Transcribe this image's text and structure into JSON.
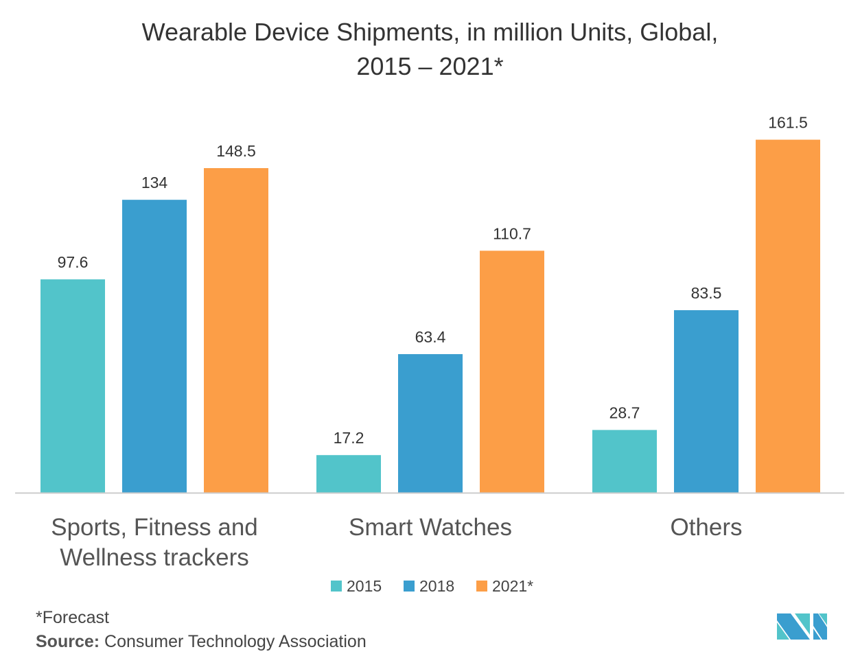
{
  "chart_data": {
    "type": "bar",
    "title_line1": "Wearable Device Shipments, in million Units, Global,",
    "title_line2": "2015 – 2021*",
    "categories": [
      [
        "Sports, Fitness and",
        "Wellness trackers"
      ],
      [
        "Smart Watches"
      ],
      [
        "Others"
      ]
    ],
    "series": [
      {
        "name": "2015",
        "color": "#52C4CA",
        "values": [
          97.6,
          17.2,
          28.7
        ],
        "labels": [
          "97.6",
          "17.2",
          "28.7"
        ]
      },
      {
        "name": "2018",
        "color": "#3A9ECF",
        "values": [
          134,
          63.4,
          83.5
        ],
        "labels": [
          "134",
          "63.4",
          "83.5"
        ]
      },
      {
        "name": "2021*",
        "color": "#FC9E47",
        "values": [
          148.5,
          110.7,
          161.5
        ],
        "labels": [
          "148.5",
          "110.7",
          "161.5"
        ]
      }
    ],
    "xlabel": "",
    "ylabel": "",
    "ylim": [
      0,
      170
    ],
    "grid": false,
    "legend_position": "bottom"
  },
  "footer": {
    "note": "*Forecast",
    "source_label": "Source:",
    "source_text": " Consumer Technology Association"
  },
  "logo": {
    "text": "MN",
    "colors": [
      "#3A9ECF",
      "#52C4CA"
    ]
  }
}
